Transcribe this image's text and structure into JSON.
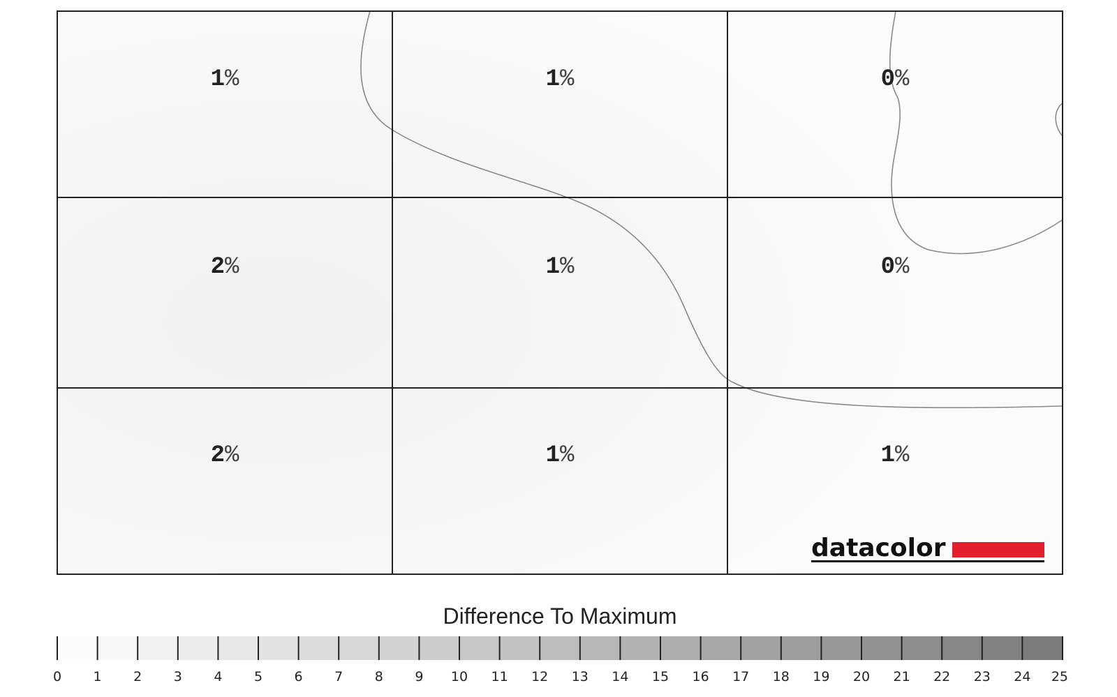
{
  "chart_data": {
    "type": "heatmap",
    "rows": 3,
    "cols": 3,
    "cells": [
      [
        {
          "value": 1,
          "unit": "%"
        },
        {
          "value": 1,
          "unit": "%"
        },
        {
          "value": 0,
          "unit": "%"
        }
      ],
      [
        {
          "value": 2,
          "unit": "%"
        },
        {
          "value": 1,
          "unit": "%"
        },
        {
          "value": 0,
          "unit": "%"
        }
      ],
      [
        {
          "value": 2,
          "unit": "%"
        },
        {
          "value": 1,
          "unit": "%"
        },
        {
          "value": 1,
          "unit": "%"
        }
      ]
    ],
    "legend": {
      "title": "Difference To Maximum",
      "min": 0,
      "max": 25,
      "ticks": [
        0,
        1,
        2,
        3,
        4,
        5,
        6,
        7,
        8,
        9,
        10,
        11,
        12,
        13,
        14,
        15,
        16,
        17,
        18,
        19,
        20,
        21,
        22,
        23,
        24,
        25
      ],
      "color_low": "#ffffff",
      "color_high": "#7a7a7a"
    },
    "grid": true,
    "contour_lines": true
  },
  "brand": {
    "name": "datacolor",
    "accent_color": "#e31e2d"
  },
  "colors": {
    "grid_line": "#222222",
    "contour_line": "#8a8a8a",
    "cell_fill": "#f8f8f8"
  }
}
